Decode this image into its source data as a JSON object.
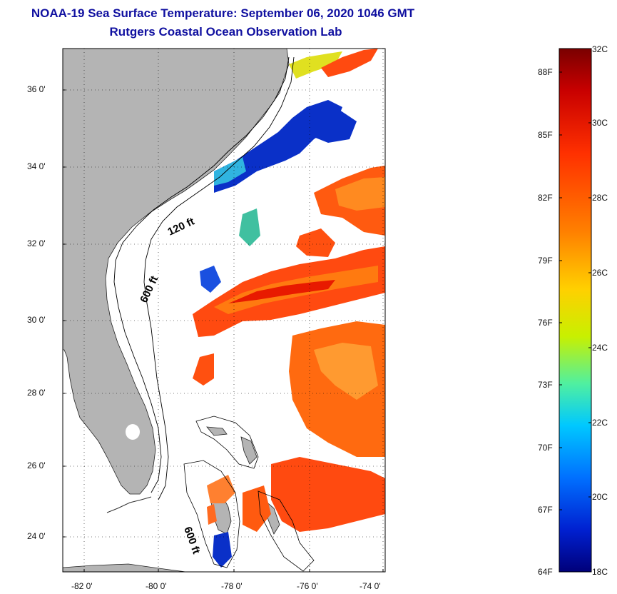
{
  "title": {
    "line1": "NOAA-19 Sea Surface Temperature:  September 06, 2020 1046 GMT",
    "line2": "Rutgers Coastal Ocean Observation Lab"
  },
  "map": {
    "lat_ticks": [
      "36 0'",
      "34 0'",
      "32 0'",
      "30 0'",
      "28 0'",
      "26 0'",
      "24 0'"
    ],
    "lon_ticks": [
      "-82 0'",
      "-80 0'",
      "-78 0'",
      "-76 0'",
      "-74 0'"
    ],
    "contour_labels": [
      "120 ft",
      "600 ft",
      "600 ft"
    ],
    "land_color": "#b4b4b4",
    "no_data_color": "#ffffff"
  },
  "colorbar": {
    "fahrenheit_labels": [
      "88F",
      "85F",
      "82F",
      "79F",
      "76F",
      "73F",
      "70F",
      "67F",
      "64F"
    ],
    "celsius_labels": [
      "32C",
      "30C",
      "28C",
      "26C",
      "24C",
      "22C",
      "20C",
      "18C"
    ],
    "colors": [
      "#7a0000",
      "#c80000",
      "#ff3000",
      "#ff8000",
      "#ffd000",
      "#c8f000",
      "#50f0a0",
      "#00c8ff",
      "#0070ff",
      "#0020d0",
      "#00007a"
    ]
  }
}
